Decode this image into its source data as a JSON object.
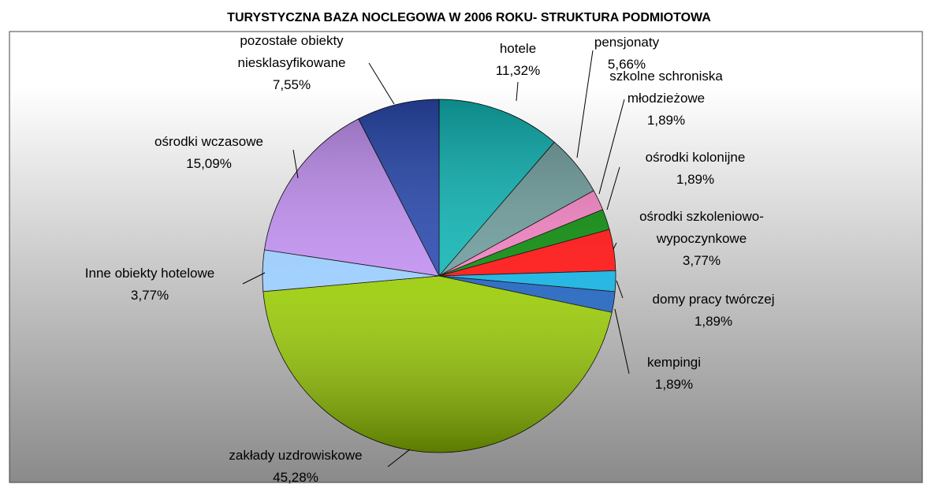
{
  "chart_data": {
    "type": "pie",
    "title": "TURYSTYCZNA BAZA NOCLEGOWA W 2006 ROKU- STRUKTURA PODMIOTOWA",
    "categories": [
      "hotele",
      "pensjonaty",
      "szkolne schroniska młodzieżowe",
      "ośrodki kolonijne",
      "ośrodki szkoleniowo-wypoczynkowe",
      "domy pracy twórczej",
      "kempingi",
      "zakłady uzdrowiskowe",
      "Inne obiekty hotelowe",
      "ośrodki wczasowe",
      "pozostałe obiekty niesklasyfikowane"
    ],
    "values": [
      11.32,
      5.66,
      1.89,
      1.89,
      3.77,
      1.89,
      1.89,
      45.28,
      3.77,
      15.09,
      7.55
    ],
    "value_labels": [
      "11,32%",
      "5,66%",
      "1,89%",
      "1,89%",
      "3,77%",
      "1,89%",
      "1,89%",
      "45,28%",
      "3,77%",
      "15,09%",
      "7,55%"
    ],
    "colors": [
      "#11b5b5",
      "#6f9c9c",
      "#f080c0",
      "#0a8a0a",
      "#ff1010",
      "#10b0e0",
      "#1a60c0",
      "#99cc00",
      "#99ccff",
      "#c08ff0",
      "#2a4ab0"
    ]
  }
}
